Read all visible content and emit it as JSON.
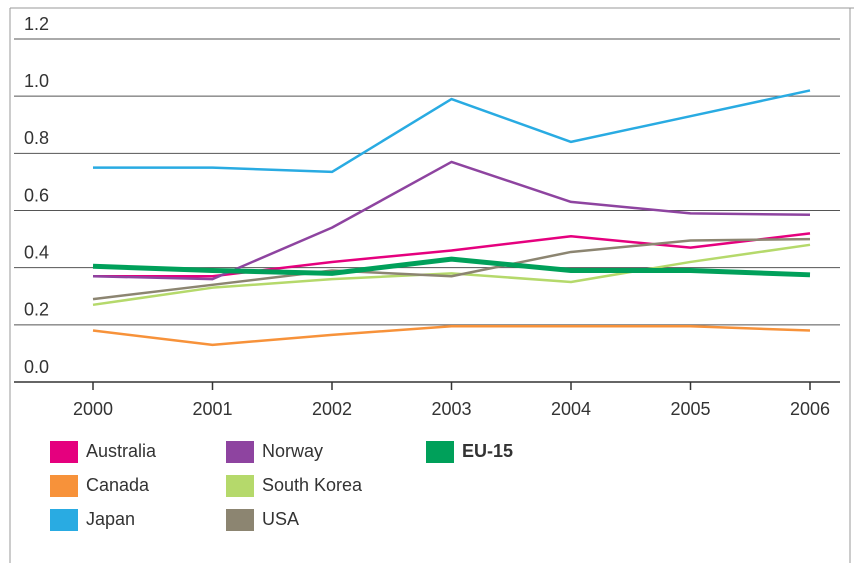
{
  "chart_data": {
    "type": "line",
    "categories": [
      "2000",
      "2001",
      "2002",
      "2003",
      "2004",
      "2005",
      "2006"
    ],
    "series": [
      {
        "name": "Australia",
        "color": "#e5007e",
        "values": [
          0.37,
          0.37,
          0.42,
          0.46,
          0.51,
          0.47,
          0.52
        ]
      },
      {
        "name": "Canada",
        "color": "#f7923a",
        "values": [
          0.18,
          0.13,
          0.165,
          0.195,
          0.195,
          0.195,
          0.18
        ]
      },
      {
        "name": "Japan",
        "color": "#29abe2",
        "values": [
          0.75,
          0.75,
          0.735,
          0.99,
          0.84,
          0.93,
          1.02
        ]
      },
      {
        "name": "Norway",
        "color": "#8e44a0",
        "values": [
          0.37,
          0.36,
          0.54,
          0.77,
          0.63,
          0.59,
          0.585
        ]
      },
      {
        "name": "South Korea",
        "color": "#b5d96b",
        "values": [
          0.27,
          0.33,
          0.36,
          0.38,
          0.35,
          0.42,
          0.48
        ]
      },
      {
        "name": "USA",
        "color": "#8c8571",
        "values": [
          0.29,
          0.34,
          0.39,
          0.37,
          0.455,
          0.495,
          0.5
        ]
      },
      {
        "name": "EU-15",
        "color": "#00a05a",
        "values": [
          0.405,
          0.39,
          0.38,
          0.43,
          0.39,
          0.39,
          0.375
        ]
      }
    ],
    "ylim": [
      0,
      1.2
    ],
    "yticks": [
      {
        "value": 0,
        "label": "0.0"
      },
      0.2,
      0.4,
      0.6,
      0.8,
      {
        "value": 1,
        "label": "1.0"
      },
      1.2
    ],
    "grid": true
  }
}
